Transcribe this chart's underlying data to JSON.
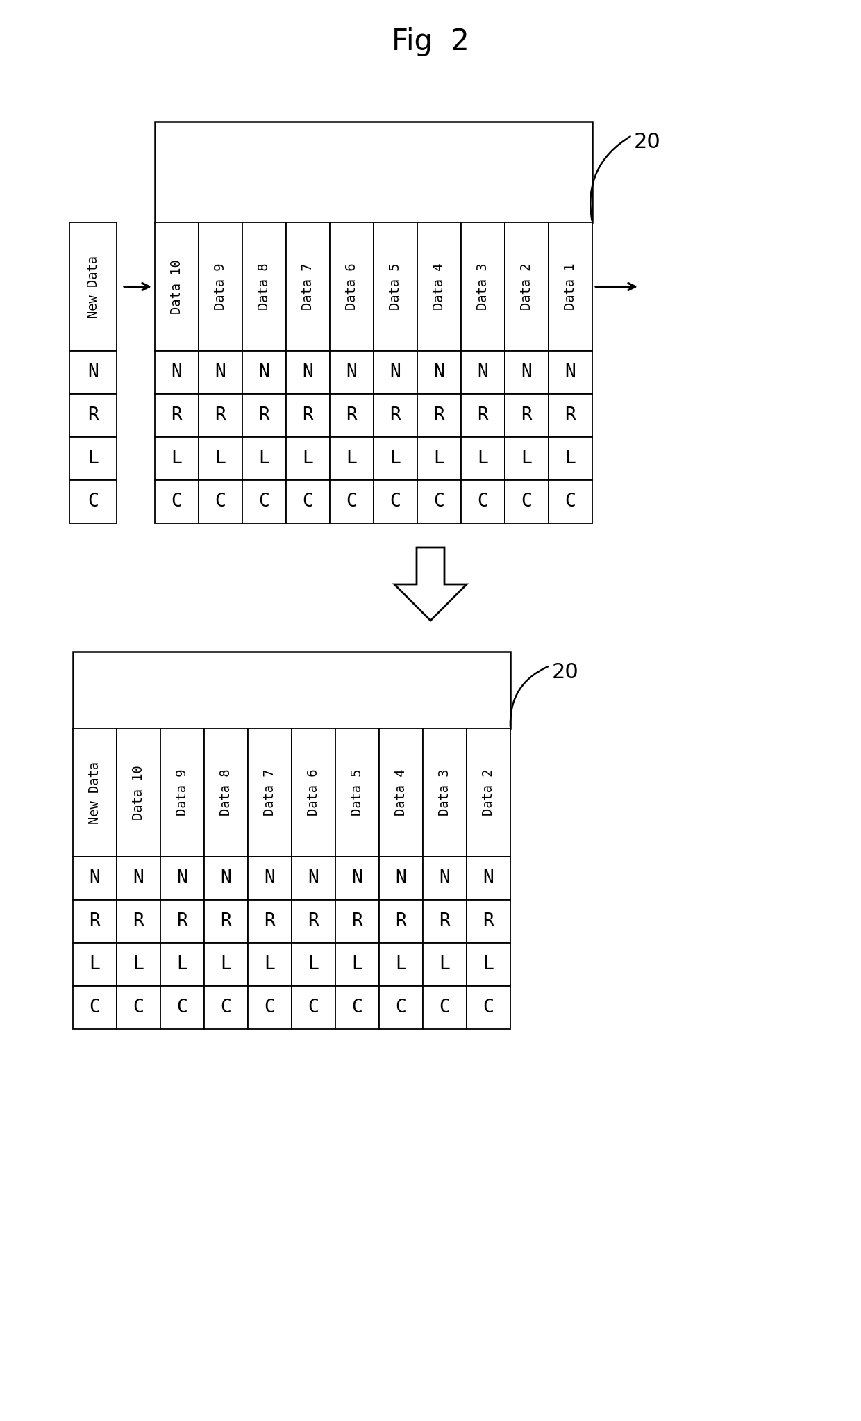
{
  "title": "Fig  2",
  "label_20": "20",
  "fig_bg": "#ffffff",
  "table1": {
    "header_labels": [
      "Data 10",
      "Data 9",
      "Data 8",
      "Data 7",
      "Data 6",
      "Data 5",
      "Data 4",
      "Data 3",
      "Data 2",
      "Data 1"
    ],
    "left_label": "New Data",
    "row_labels": [
      "N",
      "R",
      "L",
      "C"
    ]
  },
  "table2": {
    "header_labels": [
      "New Data",
      "Data 10",
      "Data 9",
      "Data 8",
      "Data 7",
      "Data 6",
      "Data 5",
      "Data 4",
      "Data 3",
      "Data 2"
    ],
    "row_labels": [
      "N",
      "R",
      "L",
      "C"
    ]
  }
}
